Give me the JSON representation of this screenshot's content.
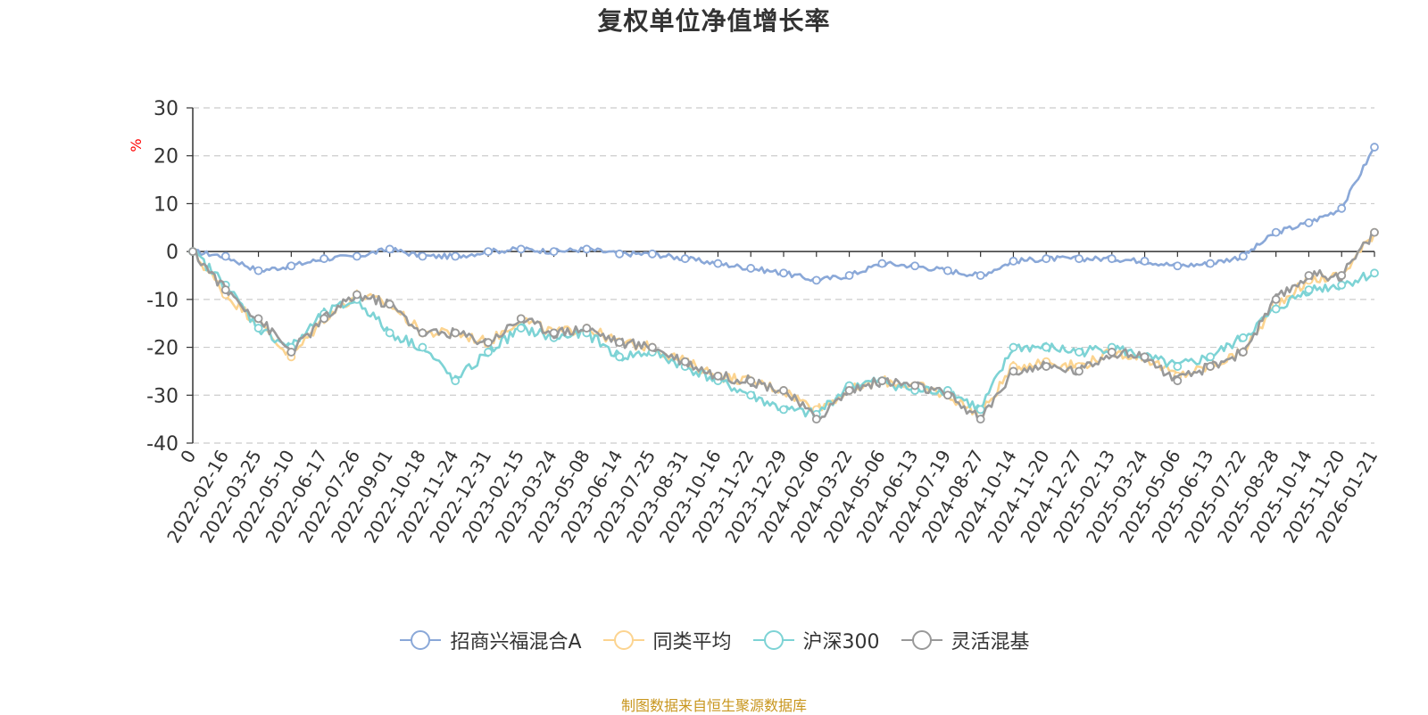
{
  "chart_data": {
    "type": "line",
    "title": "复权单位净值增长率",
    "ylabel": "%",
    "xlabel": "",
    "ylim": [
      -40,
      30
    ],
    "yticks": [
      30,
      20,
      10,
      0,
      -10,
      -20,
      -30,
      -40
    ],
    "grid": true,
    "legend_position": "bottom-center",
    "source": "制图数据来自恒生聚源数据库",
    "categories": [
      "0",
      "2022-02-16",
      "2022-03-25",
      "2022-05-10",
      "2022-06-17",
      "2022-07-26",
      "2022-09-01",
      "2022-10-18",
      "2022-11-24",
      "2022-12-31",
      "2023-02-15",
      "2023-03-24",
      "2023-05-08",
      "2023-06-14",
      "2023-07-25",
      "2023-08-31",
      "2023-10-16",
      "2023-11-22",
      "2023-12-29",
      "2024-02-06",
      "2024-03-22",
      "2024-05-06",
      "2024-06-13",
      "2024-07-19",
      "2024-08-27",
      "2024-10-14",
      "2024-11-20",
      "2024-12-27",
      "2025-02-13",
      "2025-03-24",
      "2025-05-06",
      "2025-06-13",
      "2025-07-22",
      "2025-08-28",
      "2025-10-14",
      "2025-11-20",
      "2026-01-21"
    ],
    "series": [
      {
        "name": "招商兴福混合A",
        "color": "#8aa8d8",
        "values": [
          0,
          -1,
          -4,
          -3,
          -1.5,
          -1,
          0.5,
          -1,
          -1,
          0,
          0.5,
          0,
          0.5,
          -0.5,
          -0.5,
          -1.5,
          -2.5,
          -3.5,
          -4.5,
          -6,
          -5,
          -2.5,
          -3,
          -4,
          -5,
          -2,
          -1.5,
          -1.5,
          -1.5,
          -2,
          -3,
          -2.5,
          -1,
          4,
          6,
          9,
          21.8
        ]
      },
      {
        "name": "同类平均",
        "color": "#fcd490",
        "values": [
          0,
          -9,
          -15,
          -22,
          -14,
          -9,
          -11,
          -17,
          -17,
          -19,
          -14,
          -17,
          -16,
          -19,
          -20,
          -23,
          -26,
          -27,
          -29,
          -33,
          -29,
          -27,
          -28,
          -30,
          -34,
          -24,
          -23,
          -24,
          -21,
          -22,
          -26,
          -24,
          -21,
          -11,
          -6,
          -5,
          4
        ]
      },
      {
        "name": "沪深300",
        "color": "#7dd3d5",
        "values": [
          0,
          -7,
          -16,
          -20,
          -13,
          -10,
          -17,
          -20,
          -27,
          -21,
          -16,
          -18,
          -17,
          -22,
          -21,
          -24,
          -27,
          -30,
          -33,
          -34,
          -28,
          -27,
          -29,
          -29,
          -33,
          -20,
          -20,
          -21,
          -20,
          -22,
          -24,
          -22,
          -18,
          -12,
          -8,
          -7,
          -4.5
        ]
      },
      {
        "name": "灵活混基",
        "color": "#999999",
        "values": [
          0,
          -8,
          -14,
          -21,
          -14,
          -9,
          -11,
          -17,
          -17,
          -19,
          -14,
          -17,
          -16,
          -19,
          -20,
          -23,
          -26,
          -27,
          -29,
          -35,
          -29,
          -27,
          -28,
          -30,
          -35,
          -25,
          -24,
          -25,
          -21,
          -22,
          -27,
          -24,
          -21,
          -10,
          -5,
          -5,
          4
        ]
      }
    ]
  }
}
